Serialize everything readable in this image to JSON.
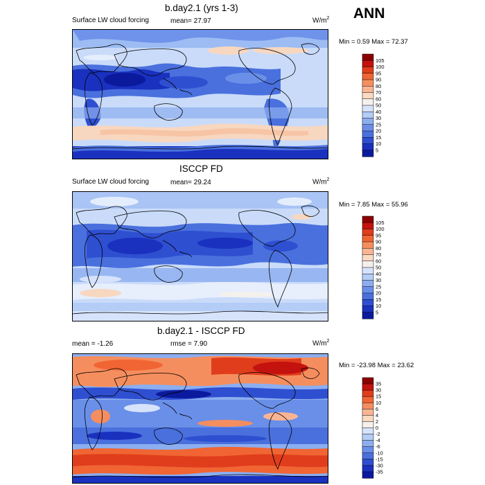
{
  "season": "ANN",
  "units": "W/m",
  "units_sup": "2",
  "panels": [
    {
      "title": "b.day2.1 (yrs 1-3)",
      "left_label": "Surface LW cloud forcing",
      "mid_label": "mean=  27.97",
      "minmax": "Min =   0.59 Max =  72.37",
      "colorbar_levels": [
        "105",
        "100",
        "95",
        "90",
        "80",
        "70",
        "60",
        "50",
        "40",
        "30",
        "25",
        "20",
        "15",
        "10",
        "5"
      ],
      "colorbar_colors": [
        "#8b0000",
        "#c4120f",
        "#e03d1c",
        "#f06533",
        "#f58e5e",
        "#f9b593",
        "#fad9c2",
        "#f4f1ec",
        "#d6e3fb",
        "#b4cdf7",
        "#8caef0",
        "#6a8fe8",
        "#4a70de",
        "#2f4fd1",
        "#1a31bf",
        "#0b1a9d"
      ]
    },
    {
      "title": "ISCCP FD",
      "left_label": "Surface LW cloud forcing",
      "mid_label": "mean=  29.24",
      "minmax": "Min =   7.85 Max =  55.96",
      "colorbar_levels": [
        "105",
        "100",
        "95",
        "90",
        "80",
        "70",
        "60",
        "50",
        "40",
        "30",
        "25",
        "20",
        "15",
        "10",
        "5"
      ],
      "colorbar_colors": [
        "#8b0000",
        "#c4120f",
        "#e03d1c",
        "#f06533",
        "#f58e5e",
        "#f9b593",
        "#fad9c2",
        "#f4f1ec",
        "#d6e3fb",
        "#b4cdf7",
        "#8caef0",
        "#6a8fe8",
        "#4a70de",
        "#2f4fd1",
        "#1a31bf",
        "#0b1a9d"
      ]
    },
    {
      "title": "b.day2.1 - ISCCP FD",
      "left_label": "mean =  -1.26",
      "mid_label": "rmse =   7.90",
      "minmax": "Min = -23.98 Max =  23.62",
      "colorbar_levels": [
        "35",
        "30",
        "15",
        "10",
        "6",
        "4",
        "2",
        "0",
        "-2",
        "-4",
        "-6",
        "-10",
        "-15",
        "-30",
        "-35"
      ],
      "colorbar_colors": [
        "#8b0000",
        "#c4120f",
        "#e03d1c",
        "#f06533",
        "#f58e5e",
        "#f9b593",
        "#fad9c2",
        "#f4f1ec",
        "#d6e3fb",
        "#b4cdf7",
        "#8caef0",
        "#6a8fe8",
        "#4a70de",
        "#2f4fd1",
        "#1a31bf",
        "#0b1a9d"
      ]
    }
  ],
  "chart_data": [
    {
      "type": "heatmap",
      "title": "b.day2.1 (yrs 1-3)",
      "subtitle": "Surface LW cloud forcing",
      "units": "W/m2",
      "mean": 27.97,
      "min": 0.59,
      "max": 72.37,
      "contour_levels": [
        5,
        10,
        15,
        20,
        25,
        30,
        40,
        50,
        60,
        70,
        80,
        90,
        95,
        100,
        105
      ]
    },
    {
      "type": "heatmap",
      "title": "ISCCP FD",
      "subtitle": "Surface LW cloud forcing",
      "units": "W/m2",
      "mean": 29.24,
      "min": 7.85,
      "max": 55.96,
      "contour_levels": [
        5,
        10,
        15,
        20,
        25,
        30,
        40,
        50,
        60,
        70,
        80,
        90,
        95,
        100,
        105
      ]
    },
    {
      "type": "heatmap",
      "title": "b.day2.1 - ISCCP FD",
      "units": "W/m2",
      "mean": -1.26,
      "rmse": 7.9,
      "min": -23.98,
      "max": 23.62,
      "contour_levels": [
        -35,
        -30,
        -15,
        -10,
        -6,
        -4,
        -2,
        0,
        2,
        4,
        6,
        10,
        15,
        30,
        35
      ]
    }
  ]
}
